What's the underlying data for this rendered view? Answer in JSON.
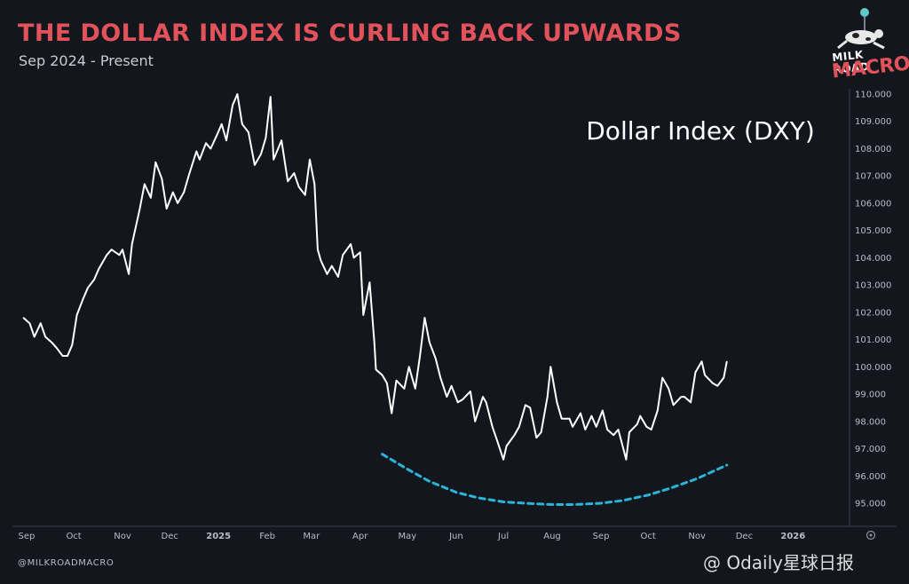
{
  "header": {
    "title": "THE DOLLAR INDEX IS CURLING BACK UPWARDS",
    "subtitle": "Sep 2024 - Present"
  },
  "brand": {
    "logo_line1": "MILK ROAD",
    "logo_line2": "MACRO",
    "handle": "@MILKROADMACRO",
    "watermark": "@ Odaily星球日报",
    "accent_red": "#e2525a",
    "curve_color": "#29b6d6"
  },
  "chart_data": {
    "type": "line",
    "title": "THE DOLLAR INDEX IS CURLING BACK UPWARDS",
    "subtitle": "Sep 2024 - Present",
    "annotation": "Dollar Index (DXY)",
    "xlabel": "",
    "ylabel": "",
    "ylim": [
      94.3,
      110.3
    ],
    "y_ticks": [
      "110.000",
      "109.000",
      "108.000",
      "107.000",
      "106.000",
      "105.000",
      "104.000",
      "103.000",
      "102.000",
      "101.000",
      "100.000",
      "99.000",
      "98.000",
      "97.000",
      "96.000",
      "95.000"
    ],
    "x_ticks": [
      "Sep",
      "Oct",
      "Nov",
      "Dec",
      "2025",
      "Feb",
      "Mar",
      "Apr",
      "May",
      "Jun",
      "Jul",
      "Aug",
      "Sep",
      "Oct",
      "Nov",
      "Dec",
      "2026"
    ],
    "grid": false,
    "line_color": "#ffffff",
    "series": [
      {
        "values": [
          [
            "2024-08-30",
            101.8
          ],
          [
            "2024-09-03",
            101.6
          ],
          [
            "2024-09-06",
            101.1
          ],
          [
            "2024-09-10",
            101.6
          ],
          [
            "2024-09-13",
            101.1
          ],
          [
            "2024-09-17",
            100.9
          ],
          [
            "2024-09-20",
            100.7
          ],
          [
            "2024-09-24",
            100.4
          ],
          [
            "2024-09-27",
            100.4
          ],
          [
            "2024-09-30",
            100.8
          ],
          [
            "2024-10-03",
            101.9
          ],
          [
            "2024-10-07",
            102.5
          ],
          [
            "2024-10-10",
            102.9
          ],
          [
            "2024-10-14",
            103.2
          ],
          [
            "2024-10-17",
            103.6
          ],
          [
            "2024-10-22",
            104.1
          ],
          [
            "2024-10-25",
            104.3
          ],
          [
            "2024-10-30",
            104.1
          ],
          [
            "2024-11-01",
            104.3
          ],
          [
            "2024-11-05",
            103.4
          ],
          [
            "2024-11-07",
            104.5
          ],
          [
            "2024-11-12",
            105.8
          ],
          [
            "2024-11-15",
            106.7
          ],
          [
            "2024-11-19",
            106.2
          ],
          [
            "2024-11-22",
            107.5
          ],
          [
            "2024-11-26",
            106.9
          ],
          [
            "2024-11-29",
            105.8
          ],
          [
            "2024-12-03",
            106.4
          ],
          [
            "2024-12-06",
            106.0
          ],
          [
            "2024-12-10",
            106.4
          ],
          [
            "2024-12-13",
            107.0
          ],
          [
            "2024-12-18",
            107.9
          ],
          [
            "2024-12-20",
            107.6
          ],
          [
            "2024-12-24",
            108.2
          ],
          [
            "2024-12-27",
            108.0
          ],
          [
            "2024-12-31",
            108.5
          ],
          [
            "2025-01-03",
            108.9
          ],
          [
            "2025-01-06",
            108.3
          ],
          [
            "2025-01-10",
            109.6
          ],
          [
            "2025-01-13",
            110.0
          ],
          [
            "2025-01-16",
            108.9
          ],
          [
            "2025-01-20",
            108.6
          ],
          [
            "2025-01-24",
            107.4
          ],
          [
            "2025-01-28",
            107.8
          ],
          [
            "2025-01-31",
            108.4
          ],
          [
            "2025-02-03",
            109.9
          ],
          [
            "2025-02-05",
            107.6
          ],
          [
            "2025-02-10",
            108.3
          ],
          [
            "2025-02-14",
            106.8
          ],
          [
            "2025-02-18",
            107.1
          ],
          [
            "2025-02-21",
            106.6
          ],
          [
            "2025-02-25",
            106.3
          ],
          [
            "2025-02-28",
            107.6
          ],
          [
            "2025-03-03",
            106.7
          ],
          [
            "2025-03-05",
            104.3
          ],
          [
            "2025-03-07",
            103.9
          ],
          [
            "2025-03-11",
            103.4
          ],
          [
            "2025-03-14",
            103.7
          ],
          [
            "2025-03-18",
            103.3
          ],
          [
            "2025-03-21",
            104.1
          ],
          [
            "2025-03-26",
            104.5
          ],
          [
            "2025-03-28",
            104.0
          ],
          [
            "2025-04-01",
            104.2
          ],
          [
            "2025-04-03",
            101.9
          ],
          [
            "2025-04-07",
            103.1
          ],
          [
            "2025-04-10",
            100.9
          ],
          [
            "2025-04-11",
            99.9
          ],
          [
            "2025-04-15",
            99.7
          ],
          [
            "2025-04-18",
            99.4
          ],
          [
            "2025-04-21",
            98.3
          ],
          [
            "2025-04-24",
            99.5
          ],
          [
            "2025-04-29",
            99.2
          ],
          [
            "2025-05-02",
            100.0
          ],
          [
            "2025-05-06",
            99.2
          ],
          [
            "2025-05-09",
            100.4
          ],
          [
            "2025-05-12",
            101.8
          ],
          [
            "2025-05-15",
            100.9
          ],
          [
            "2025-05-19",
            100.3
          ],
          [
            "2025-05-22",
            99.6
          ],
          [
            "2025-05-26",
            98.9
          ],
          [
            "2025-05-29",
            99.3
          ],
          [
            "2025-06-02",
            98.7
          ],
          [
            "2025-06-05",
            98.8
          ],
          [
            "2025-06-10",
            99.1
          ],
          [
            "2025-06-13",
            98.0
          ],
          [
            "2025-06-18",
            98.9
          ],
          [
            "2025-06-20",
            98.7
          ],
          [
            "2025-06-24",
            97.8
          ],
          [
            "2025-06-27",
            97.3
          ],
          [
            "2025-07-01",
            96.6
          ],
          [
            "2025-07-03",
            97.1
          ],
          [
            "2025-07-08",
            97.5
          ],
          [
            "2025-07-11",
            97.8
          ],
          [
            "2025-07-15",
            98.6
          ],
          [
            "2025-07-18",
            98.5
          ],
          [
            "2025-07-22",
            97.4
          ],
          [
            "2025-07-25",
            97.6
          ],
          [
            "2025-07-29",
            98.9
          ],
          [
            "2025-07-31",
            100.0
          ],
          [
            "2025-08-04",
            98.7
          ],
          [
            "2025-08-07",
            98.1
          ],
          [
            "2025-08-12",
            98.1
          ],
          [
            "2025-08-14",
            97.8
          ],
          [
            "2025-08-19",
            98.3
          ],
          [
            "2025-08-22",
            97.7
          ],
          [
            "2025-08-26",
            98.2
          ],
          [
            "2025-08-29",
            97.8
          ],
          [
            "2025-09-02",
            98.4
          ],
          [
            "2025-09-05",
            97.7
          ],
          [
            "2025-09-09",
            97.5
          ],
          [
            "2025-09-12",
            97.7
          ],
          [
            "2025-09-17",
            96.6
          ],
          [
            "2025-09-19",
            97.6
          ],
          [
            "2025-09-24",
            97.9
          ],
          [
            "2025-09-26",
            98.2
          ],
          [
            "2025-09-30",
            97.8
          ],
          [
            "2025-10-03",
            97.7
          ],
          [
            "2025-10-07",
            98.4
          ],
          [
            "2025-10-10",
            99.6
          ],
          [
            "2025-10-14",
            99.2
          ],
          [
            "2025-10-17",
            98.6
          ],
          [
            "2025-10-22",
            98.9
          ],
          [
            "2025-10-24",
            98.9
          ],
          [
            "2025-10-28",
            98.7
          ],
          [
            "2025-10-31",
            99.8
          ],
          [
            "2025-11-04",
            100.2
          ],
          [
            "2025-11-06",
            99.7
          ],
          [
            "2025-11-11",
            99.4
          ],
          [
            "2025-11-14",
            99.3
          ],
          [
            "2025-11-18",
            99.6
          ],
          [
            "2025-11-20",
            100.2
          ]
        ]
      },
      {
        "values": [
          [
            "2025-04-15",
            96.8
          ],
          [
            "2025-05-01",
            96.25
          ],
          [
            "2025-05-15",
            95.8
          ],
          [
            "2025-06-01",
            95.4
          ],
          [
            "2025-06-15",
            95.2
          ],
          [
            "2025-07-01",
            95.05
          ],
          [
            "2025-07-15",
            95.0
          ],
          [
            "2025-08-01",
            94.95
          ],
          [
            "2025-08-15",
            94.95
          ],
          [
            "2025-09-01",
            95.0
          ],
          [
            "2025-09-15",
            95.1
          ],
          [
            "2025-10-01",
            95.3
          ],
          [
            "2025-10-15",
            95.55
          ],
          [
            "2025-11-01",
            95.9
          ],
          [
            "2025-11-20",
            96.4
          ]
        ]
      }
    ]
  }
}
